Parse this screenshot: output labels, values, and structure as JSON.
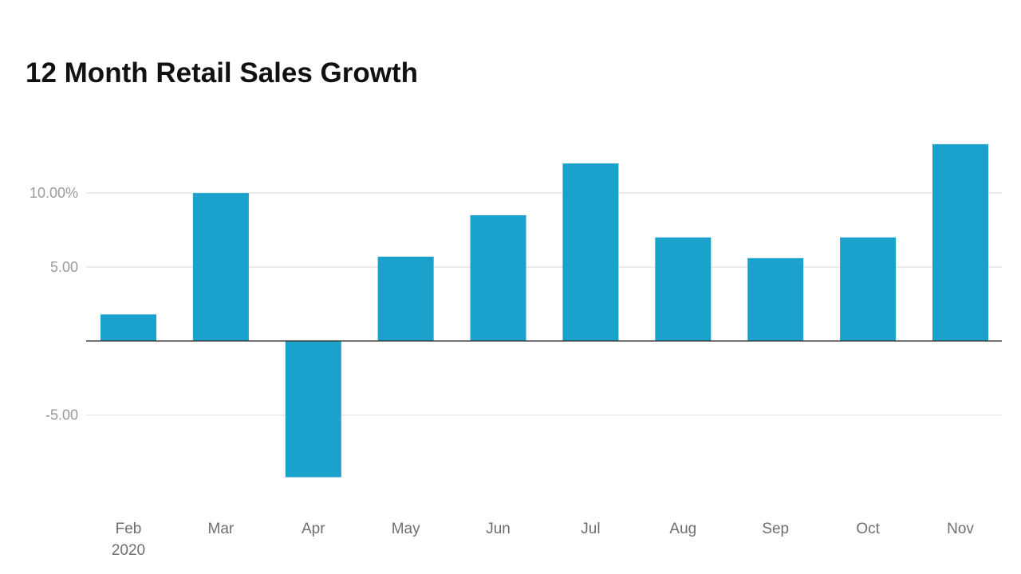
{
  "chart_data": {
    "type": "bar",
    "title": "12 Month Retail Sales Growth",
    "xlabel": "",
    "ylabel": "",
    "categories": [
      "Feb",
      "Mar",
      "Apr",
      "May",
      "Jun",
      "Jul",
      "Aug",
      "Sep",
      "Oct",
      "Nov"
    ],
    "category_sublabels": [
      "2020",
      "",
      "",
      "",
      "",
      "",
      "",
      "",
      "",
      ""
    ],
    "values": [
      1.8,
      10.0,
      -9.2,
      5.7,
      8.5,
      12.0,
      7.0,
      5.6,
      7.0,
      13.3
    ],
    "ylim": [
      -11.7,
      15.5
    ],
    "yticks": [
      -5,
      5,
      10
    ],
    "ytick_labels": [
      "-5.00",
      "5.00",
      "10.00%"
    ],
    "grid": true,
    "legend": "none",
    "bar_color": "#1aa1cc",
    "grid_color": "#e6e6e6",
    "baseline_color": "#333333"
  }
}
